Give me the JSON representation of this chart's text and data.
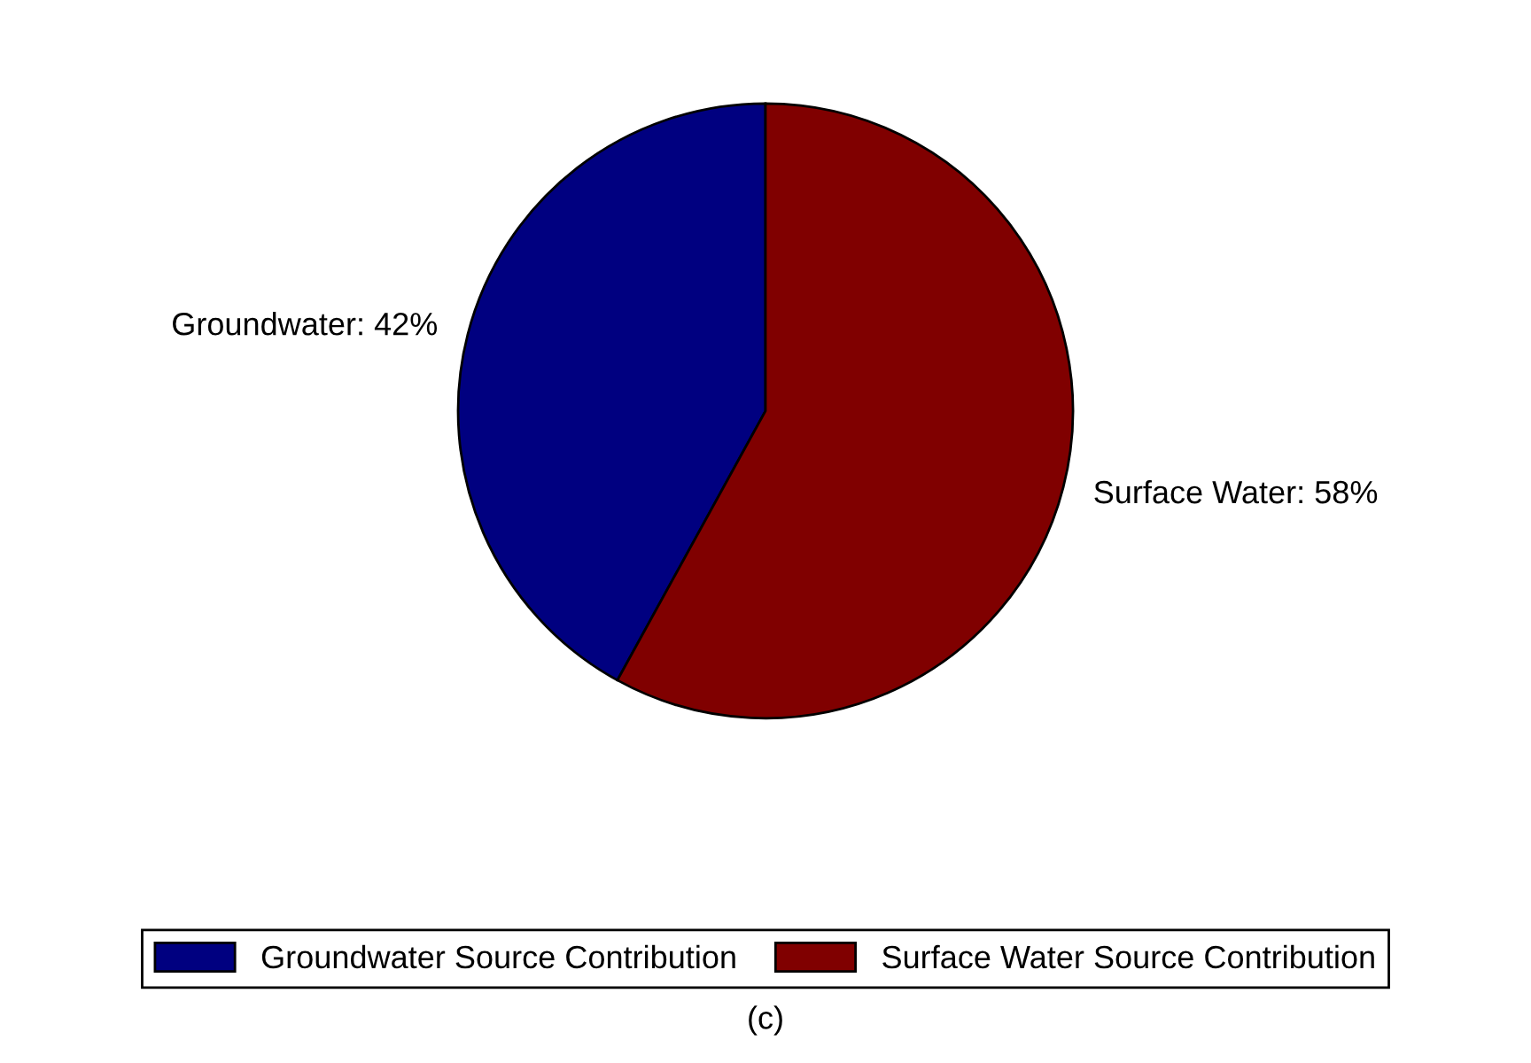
{
  "chart_data": {
    "type": "pie",
    "categories": [
      "Groundwater Source Contribution",
      "Surface Water Source Contribution"
    ],
    "values": [
      42,
      58
    ],
    "colors": [
      "#000080",
      "#800000"
    ],
    "value_labels": [
      "Groundwater: 42%",
      "Surface Water: 58%"
    ],
    "legend": "bottom",
    "annotations": [
      "(c)"
    ]
  }
}
